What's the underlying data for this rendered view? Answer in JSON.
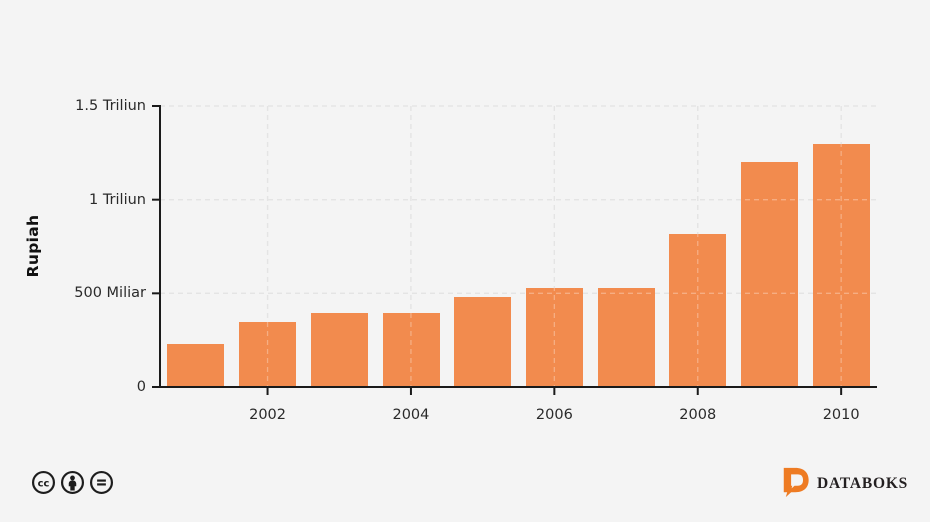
{
  "chart_data": {
    "type": "bar",
    "ylabel": "Rupiah",
    "xlabel": "",
    "unit": "Miliar Rupiah",
    "categories": [
      2001,
      2002,
      2003,
      2004,
      2005,
      2006,
      2007,
      2008,
      2009,
      2010
    ],
    "values": [
      230,
      345,
      395,
      395,
      480,
      530,
      530,
      815,
      1200,
      1300
    ],
    "ylim": [
      0,
      1500
    ],
    "yticks": [
      {
        "value": 0,
        "label": "0"
      },
      {
        "value": 500,
        "label": "500 Miliar"
      },
      {
        "value": 1000,
        "label": "1 Triliun"
      },
      {
        "value": 1500,
        "label": "1.5 Triliun"
      }
    ],
    "xticks": [
      {
        "year": 2002,
        "label": "2002"
      },
      {
        "year": 2004,
        "label": "2004"
      },
      {
        "year": 2006,
        "label": "2006"
      },
      {
        "year": 2008,
        "label": "2008"
      },
      {
        "year": 2010,
        "label": "2010"
      }
    ],
    "grid": "dashed",
    "legend_position": "none",
    "bar_color": "#f28b4e",
    "background_color": "#f4f4f4",
    "axis_color": "#1a1a1a"
  },
  "footer": {
    "license": {
      "icons": [
        {
          "name": "cc-icon",
          "symbol": "cc"
        },
        {
          "name": "cc-by-icon",
          "symbol": "person"
        },
        {
          "name": "cc-nd-icon",
          "symbol": "equals"
        }
      ]
    },
    "brand": {
      "name": "DATABOKS",
      "color": "#ee7b23"
    }
  }
}
